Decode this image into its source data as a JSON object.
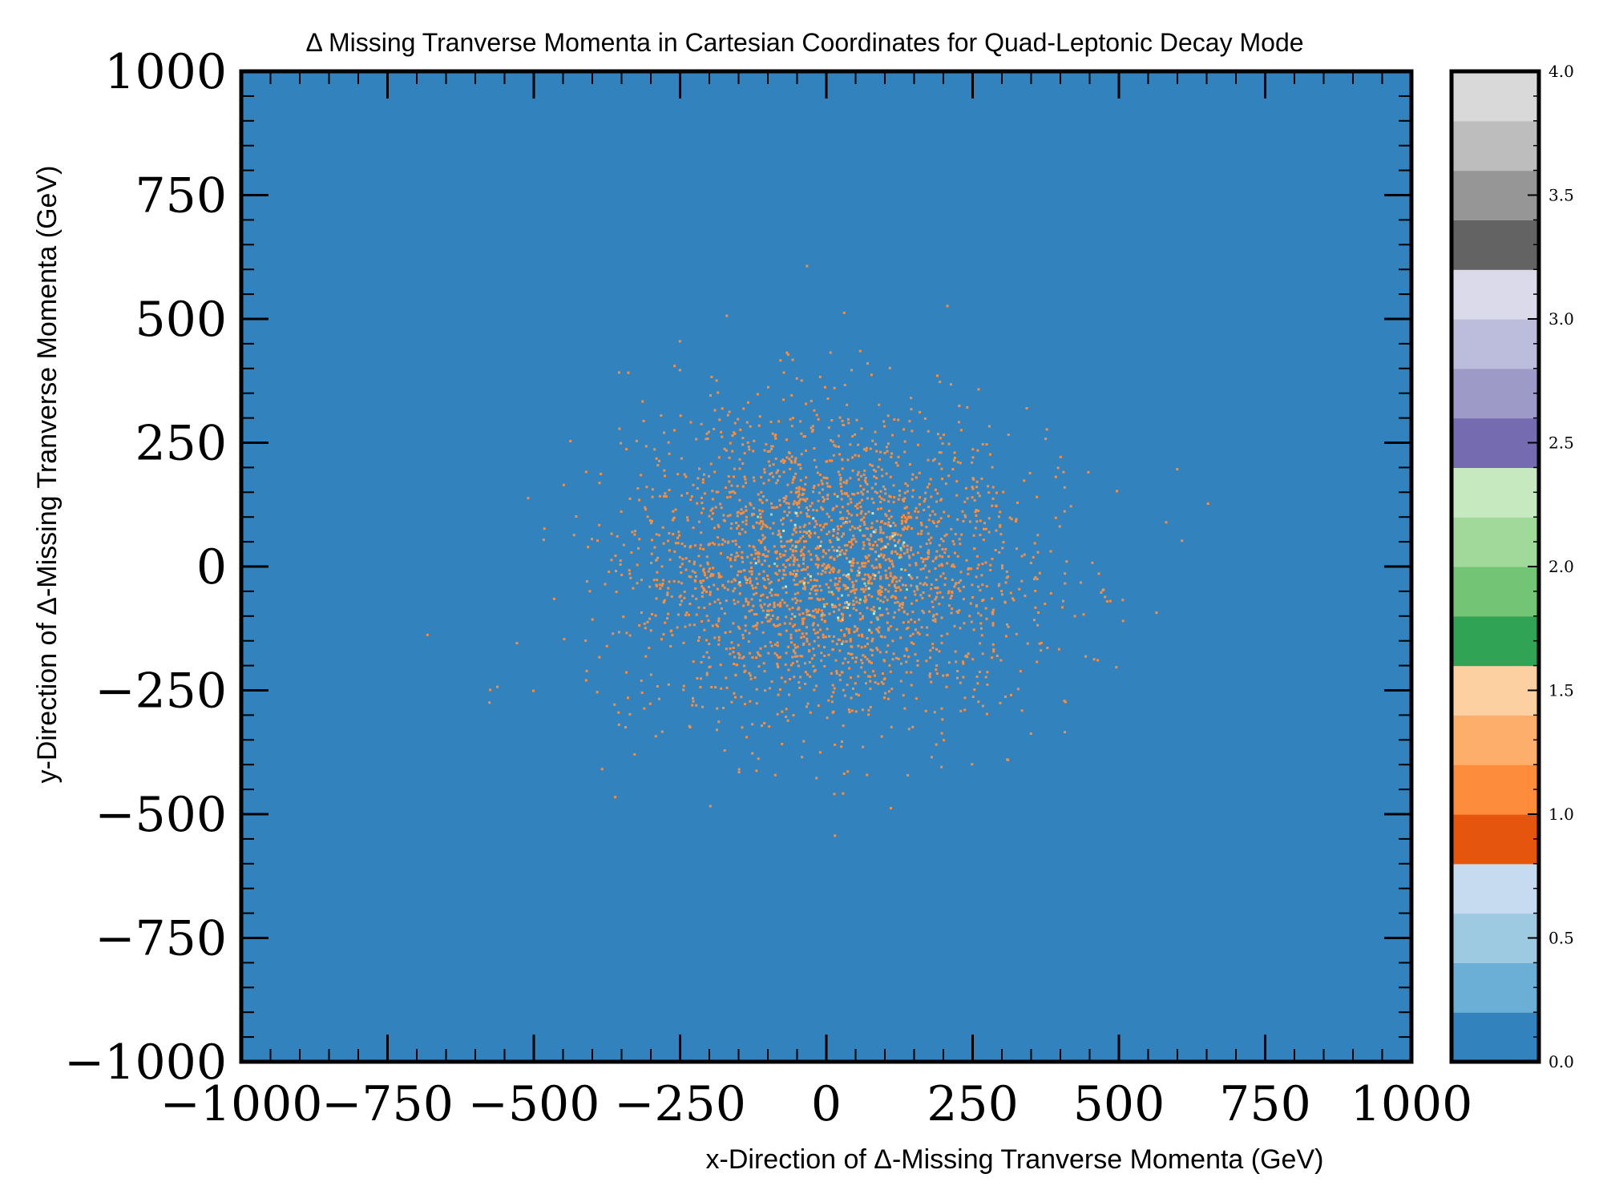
{
  "chart_data": {
    "type": "heatmap",
    "title": "Δ Missing Tranverse Momenta in Cartesian Coordinates for Quad-Leptonic Decay Mode",
    "xlabel": "x-Direction of Δ-Missing Tranverse Momenta (GeV)",
    "ylabel": "y-Direction of Δ-Missing Tranverse Momenta (GeV)",
    "xlim": [
      -1000,
      1000
    ],
    "ylim": [
      -1000,
      1000
    ],
    "x_ticks": [
      -1000,
      -750,
      -500,
      -250,
      0,
      250,
      500,
      750,
      1000
    ],
    "y_ticks": [
      -1000,
      -750,
      -500,
      -250,
      0,
      250,
      500,
      750,
      1000
    ],
    "x_tick_labels": [
      "−1000",
      "−750",
      "−500",
      "−250",
      "0",
      "250",
      "500",
      "750",
      "1000"
    ],
    "y_tick_labels": [
      "−1000",
      "−750",
      "−500",
      "−250",
      "0",
      "250",
      "500",
      "750",
      "1000"
    ],
    "background_value": 0,
    "distribution": {
      "description_values": {
        "center_x": 0,
        "center_y": 0,
        "std_x": 170,
        "std_y": 160,
        "dominant_count": 1,
        "occasional_count": 2
      }
    },
    "colorbar": {
      "min": 0,
      "max": 4,
      "ticks": [
        0.0,
        0.5,
        1.0,
        1.5,
        2.0,
        2.5,
        3.0,
        3.5,
        4.0
      ],
      "tick_labels": [
        "0.0",
        "0.5",
        "1.0",
        "1.5",
        "2.0",
        "2.5",
        "3.0",
        "3.5",
        "4.0"
      ],
      "colormap": "tab20c",
      "colors": [
        "#3182bd",
        "#6baed6",
        "#9ecae1",
        "#c6dbef",
        "#e6550d",
        "#fd8d3c",
        "#fdae6b",
        "#fdd0a2",
        "#31a354",
        "#74c476",
        "#a1d99b",
        "#c7e9c0",
        "#756bb1",
        "#9e9ac8",
        "#bcbddc",
        "#dadaeb",
        "#636363",
        "#969696",
        "#bdbdbd",
        "#d9d9d9"
      ]
    }
  }
}
